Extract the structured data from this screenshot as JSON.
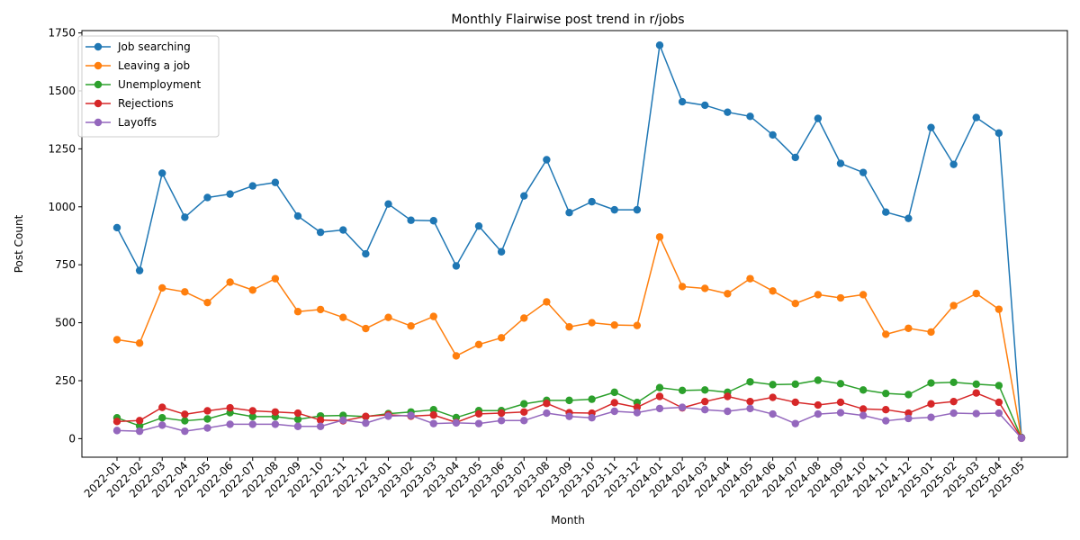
{
  "chart_data": {
    "type": "line",
    "title": "Monthly Flairwise post trend in r/jobs",
    "xlabel": "Month",
    "ylabel": "Post Count",
    "ylim": [
      -80,
      1760
    ],
    "yticks": [
      0,
      250,
      500,
      750,
      1000,
      1250,
      1500,
      1750
    ],
    "grid": false,
    "legend_position": "upper left",
    "x": [
      "2022-01",
      "2022-02",
      "2022-03",
      "2022-04",
      "2022-05",
      "2022-06",
      "2022-07",
      "2022-08",
      "2022-09",
      "2022-10",
      "2022-11",
      "2022-12",
      "2023-01",
      "2023-02",
      "2023-03",
      "2023-04",
      "2023-05",
      "2023-06",
      "2023-07",
      "2023-08",
      "2023-09",
      "2023-10",
      "2023-11",
      "2023-12",
      "2024-01",
      "2024-02",
      "2024-03",
      "2024-04",
      "2024-05",
      "2024-06",
      "2024-07",
      "2024-08",
      "2024-09",
      "2024-10",
      "2024-11",
      "2024-12",
      "2025-01",
      "2025-02",
      "2025-03",
      "2025-04",
      "2025-05"
    ],
    "series": [
      {
        "name": "Job searching",
        "color": "#1f77b4",
        "values": [
          910,
          725,
          1145,
          955,
          1040,
          1055,
          1090,
          1105,
          960,
          890,
          900,
          797,
          1012,
          942,
          940,
          745,
          917,
          806,
          1047,
          1203,
          975,
          1022,
          987,
          987,
          1697,
          1453,
          1438,
          1408,
          1390,
          1310,
          1213,
          1381,
          1187,
          1148,
          977,
          950,
          1342,
          1183,
          1385,
          1318,
          5
        ]
      },
      {
        "name": "Leaving a job",
        "color": "#ff7f0e",
        "values": [
          427,
          412,
          650,
          633,
          587,
          675,
          641,
          690,
          548,
          557,
          523,
          475,
          523,
          486,
          527,
          357,
          406,
          435,
          520,
          590,
          482,
          500,
          490,
          488,
          870,
          656,
          648,
          625,
          690,
          637,
          583,
          621,
          607,
          621,
          450,
          476,
          460,
          574,
          626,
          558,
          2
        ]
      },
      {
        "name": "Unemployment",
        "color": "#2ca02c",
        "values": [
          90,
          55,
          90,
          77,
          85,
          112,
          95,
          95,
          83,
          98,
          100,
          95,
          108,
          115,
          125,
          91,
          121,
          121,
          150,
          165,
          165,
          170,
          200,
          156,
          220,
          208,
          210,
          200,
          245,
          233,
          235,
          252,
          237,
          210,
          195,
          190,
          240,
          243,
          235,
          229,
          3
        ]
      },
      {
        "name": "Rejections",
        "color": "#d62728",
        "values": [
          74,
          78,
          135,
          105,
          120,
          133,
          120,
          115,
          110,
          80,
          77,
          96,
          103,
          97,
          102,
          70,
          107,
          110,
          115,
          152,
          112,
          110,
          155,
          135,
          182,
          133,
          160,
          182,
          160,
          178,
          157,
          145,
          157,
          128,
          125,
          110,
          150,
          160,
          197,
          157,
          3
        ]
      },
      {
        "name": "Layoffs",
        "color": "#9467bd",
        "values": [
          35,
          32,
          58,
          32,
          46,
          62,
          62,
          62,
          53,
          53,
          80,
          67,
          97,
          100,
          65,
          68,
          65,
          78,
          78,
          110,
          96,
          90,
          118,
          112,
          130,
          135,
          125,
          118,
          130,
          106,
          65,
          106,
          112,
          100,
          77,
          87,
          92,
          110,
          108,
          110,
          2
        ]
      }
    ]
  }
}
